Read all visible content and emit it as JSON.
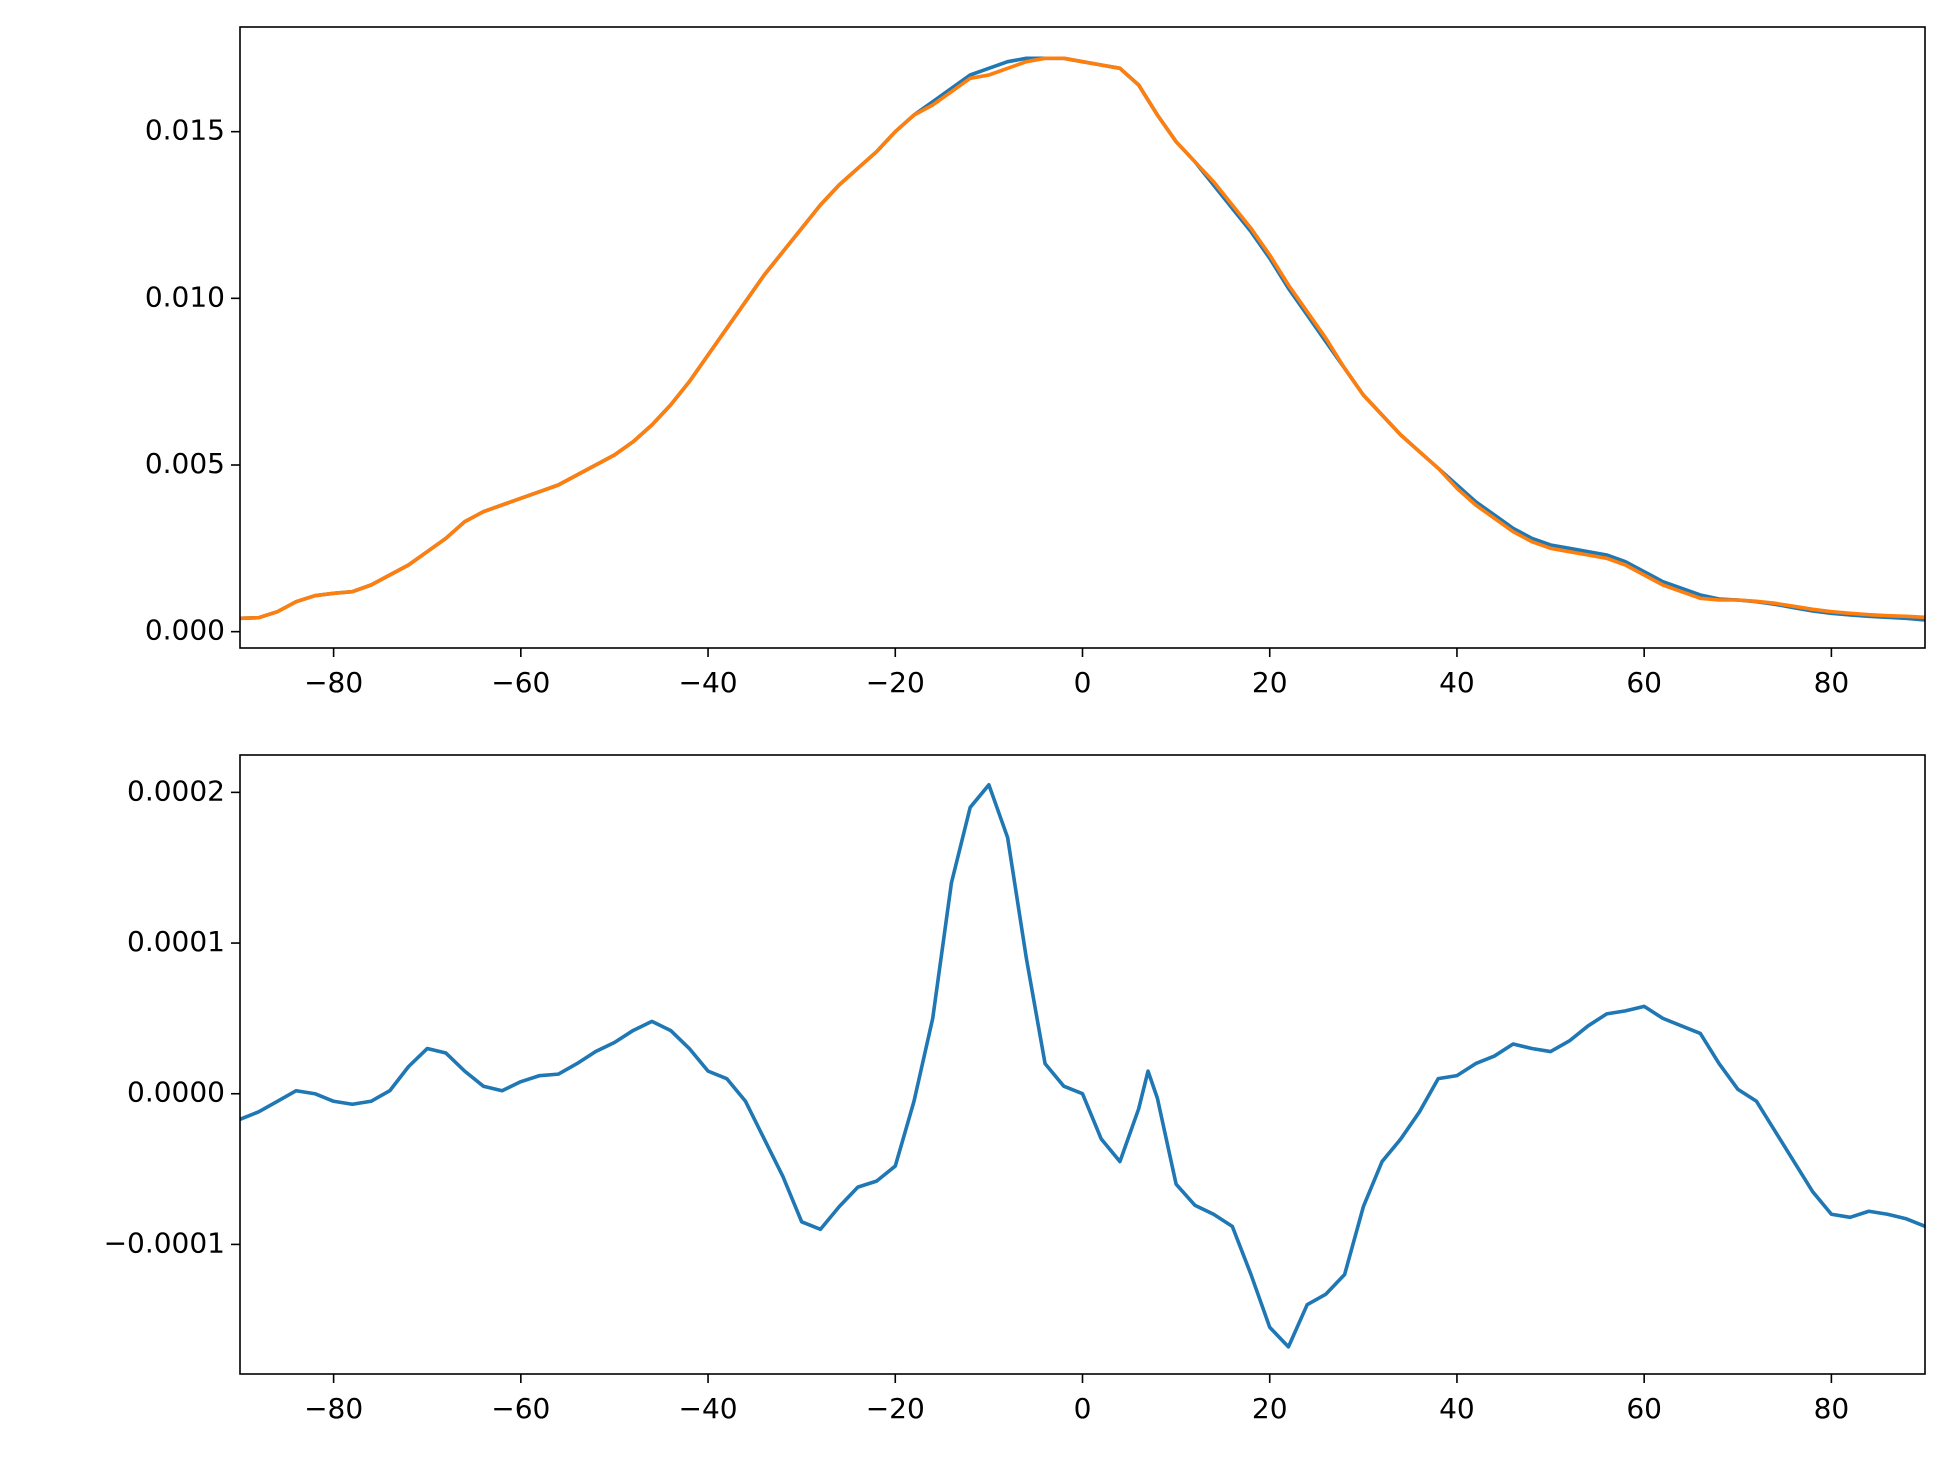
{
  "chart_data": [
    {
      "type": "line",
      "x": [
        -90,
        -88,
        -86,
        -84,
        -82,
        -80,
        -78,
        -76,
        -74,
        -72,
        -70,
        -68,
        -66,
        -64,
        -62,
        -60,
        -58,
        -56,
        -54,
        -52,
        -50,
        -48,
        -46,
        -44,
        -42,
        -40,
        -38,
        -36,
        -34,
        -32,
        -30,
        -28,
        -26,
        -24,
        -22,
        -20,
        -18,
        -16,
        -14,
        -12,
        -10,
        -8,
        -6,
        -4,
        -2,
        0,
        2,
        4,
        6,
        8,
        10,
        12,
        14,
        16,
        18,
        20,
        22,
        24,
        26,
        28,
        30,
        32,
        34,
        36,
        38,
        40,
        42,
        44,
        46,
        48,
        50,
        52,
        54,
        56,
        58,
        60,
        62,
        64,
        66,
        68,
        70,
        72,
        74,
        76,
        78,
        80,
        82,
        84,
        86,
        88,
        90
      ],
      "series": [
        {
          "color": "#1f77b4",
          "values": [
            0.0004,
            0.00042,
            0.0006,
            0.0009,
            0.00108,
            0.00115,
            0.0012,
            0.0014,
            0.0017,
            0.002,
            0.0024,
            0.0028,
            0.0033,
            0.0036,
            0.0038,
            0.004,
            0.0042,
            0.0044,
            0.0047,
            0.005,
            0.0053,
            0.0057,
            0.0062,
            0.0068,
            0.0075,
            0.0083,
            0.0091,
            0.0099,
            0.0107,
            0.0114,
            0.0121,
            0.0128,
            0.0134,
            0.0139,
            0.0144,
            0.015,
            0.0155,
            0.0159,
            0.0163,
            0.0167,
            0.0169,
            0.0171,
            0.0172,
            0.0172,
            0.0172,
            0.0171,
            0.017,
            0.0169,
            0.0164,
            0.0155,
            0.0147,
            0.0141,
            0.0134,
            0.0127,
            0.012,
            0.0112,
            0.0103,
            0.0095,
            0.0087,
            0.0079,
            0.0071,
            0.0065,
            0.0059,
            0.0054,
            0.0049,
            0.0044,
            0.0039,
            0.0035,
            0.0031,
            0.0028,
            0.0026,
            0.0025,
            0.0024,
            0.0023,
            0.0021,
            0.0018,
            0.0015,
            0.0013,
            0.0011,
            0.00098,
            0.00095,
            0.0009,
            0.00082,
            0.00072,
            0.00062,
            0.00055,
            0.0005,
            0.00046,
            0.00043,
            0.0004,
            0.00035
          ]
        },
        {
          "color": "#ff7f0e",
          "values": [
            0.0004,
            0.00042,
            0.0006,
            0.0009,
            0.00108,
            0.00115,
            0.0012,
            0.0014,
            0.0017,
            0.002,
            0.0024,
            0.0028,
            0.0033,
            0.0036,
            0.0038,
            0.004,
            0.0042,
            0.0044,
            0.0047,
            0.005,
            0.0053,
            0.0057,
            0.0062,
            0.0068,
            0.0075,
            0.0083,
            0.0091,
            0.0099,
            0.0107,
            0.0114,
            0.0121,
            0.0128,
            0.0134,
            0.0139,
            0.0144,
            0.015,
            0.0155,
            0.0158,
            0.0162,
            0.0166,
            0.0167,
            0.0169,
            0.0171,
            0.0172,
            0.0172,
            0.0171,
            0.017,
            0.0169,
            0.0164,
            0.0155,
            0.0147,
            0.0141,
            0.0135,
            0.0128,
            0.0121,
            0.0113,
            0.0104,
            0.0096,
            0.0088,
            0.0079,
            0.0071,
            0.0065,
            0.0059,
            0.0054,
            0.0049,
            0.0043,
            0.0038,
            0.0034,
            0.003,
            0.0027,
            0.0025,
            0.0024,
            0.0023,
            0.0022,
            0.002,
            0.0017,
            0.0014,
            0.0012,
            0.001,
            0.00095,
            0.00095,
            0.00091,
            0.00085,
            0.00076,
            0.00067,
            0.0006,
            0.00055,
            0.00051,
            0.00048,
            0.00046,
            0.00043
          ]
        }
      ],
      "xlim": [
        -90,
        90
      ],
      "xticks": [
        {
          "value": -80,
          "label": "−80"
        },
        {
          "value": -60,
          "label": "−60"
        },
        {
          "value": -40,
          "label": "−40"
        },
        {
          "value": -20,
          "label": "−20"
        },
        0,
        20,
        40,
        60,
        80
      ],
      "ylim": [
        -0.00049,
        0.01814
      ],
      "yticks": [
        {
          "value": 0,
          "label": "0.000"
        },
        0.005,
        {
          "value": 0.01,
          "label": "0.010"
        },
        0.015
      ]
    },
    {
      "type": "line",
      "x": [
        -90,
        -88,
        -86,
        -84,
        -82,
        -80,
        -78,
        -76,
        -74,
        -72,
        -70,
        -68,
        -66,
        -64,
        -62,
        -60,
        -58,
        -56,
        -54,
        -52,
        -50,
        -48,
        -46,
        -44,
        -42,
        -40,
        -38,
        -36,
        -34,
        -32,
        -30,
        -28,
        -26,
        -24,
        -22,
        -20,
        -18,
        -16,
        -14,
        -12,
        -10,
        -8,
        -6,
        -4,
        -2,
        0,
        2,
        4,
        6,
        7,
        8,
        10,
        12,
        14,
        16,
        18,
        20,
        22,
        24,
        26,
        28,
        30,
        32,
        34,
        36,
        38,
        40,
        42,
        44,
        46,
        48,
        50,
        52,
        54,
        56,
        58,
        60,
        62,
        64,
        66,
        68,
        70,
        72,
        74,
        76,
        78,
        80,
        82,
        84,
        86,
        88,
        90
      ],
      "series": [
        {
          "color": "#1f77b4",
          "values": [
            -1.7e-05,
            -1.2e-05,
            -5e-06,
            2e-06,
            0,
            -5e-06,
            -7e-06,
            -5e-06,
            2e-06,
            1.8e-05,
            3e-05,
            2.7e-05,
            1.5e-05,
            5e-06,
            2e-06,
            8e-06,
            1.2e-05,
            1.3e-05,
            2e-05,
            2.8e-05,
            3.4e-05,
            4.2e-05,
            4.8e-05,
            4.2e-05,
            3e-05,
            1.5e-05,
            1e-05,
            -5e-06,
            -3e-05,
            -5.5e-05,
            -8.5e-05,
            -9e-05,
            -7.5e-05,
            -6.2e-05,
            -5.8e-05,
            -4.8e-05,
            -5e-06,
            5e-05,
            0.00014,
            0.00019,
            0.000205,
            0.00017,
            9e-05,
            2e-05,
            5e-06,
            0,
            -3e-05,
            -4.5e-05,
            -1e-05,
            1.5e-05,
            -3e-06,
            -6e-05,
            -7.4e-05,
            -8e-05,
            -8.8e-05,
            -0.00012,
            -0.000155,
            -0.000168,
            -0.00014,
            -0.000133,
            -0.00012,
            -7.5e-05,
            -4.5e-05,
            -3e-05,
            -1.2e-05,
            1e-05,
            1.2e-05,
            2e-05,
            2.5e-05,
            3.3e-05,
            3e-05,
            2.8e-05,
            3.5e-05,
            4.5e-05,
            5.3e-05,
            5.5e-05,
            5.8e-05,
            5e-05,
            4.5e-05,
            4e-05,
            2e-05,
            3e-06,
            -5e-06,
            -2.5e-05,
            -4.5e-05,
            -6.5e-05,
            -8e-05,
            -8.2e-05,
            -7.8e-05,
            -8e-05,
            -8.3e-05,
            -8.8e-05
          ]
        }
      ],
      "xlim": [
        -90,
        90
      ],
      "xticks": [
        {
          "value": -80,
          "label": "−80"
        },
        {
          "value": -60,
          "label": "−60"
        },
        {
          "value": -40,
          "label": "−40"
        },
        {
          "value": -20,
          "label": "−20"
        },
        0,
        20,
        40,
        60,
        80
      ],
      "ylim": [
        -0.000186,
        0.0002248
      ],
      "yticks": [
        {
          "value": -0.0001,
          "label": "−0.0001"
        },
        {
          "value": 0,
          "label": "0.0000"
        },
        0.0001,
        0.0002
      ]
    }
  ]
}
